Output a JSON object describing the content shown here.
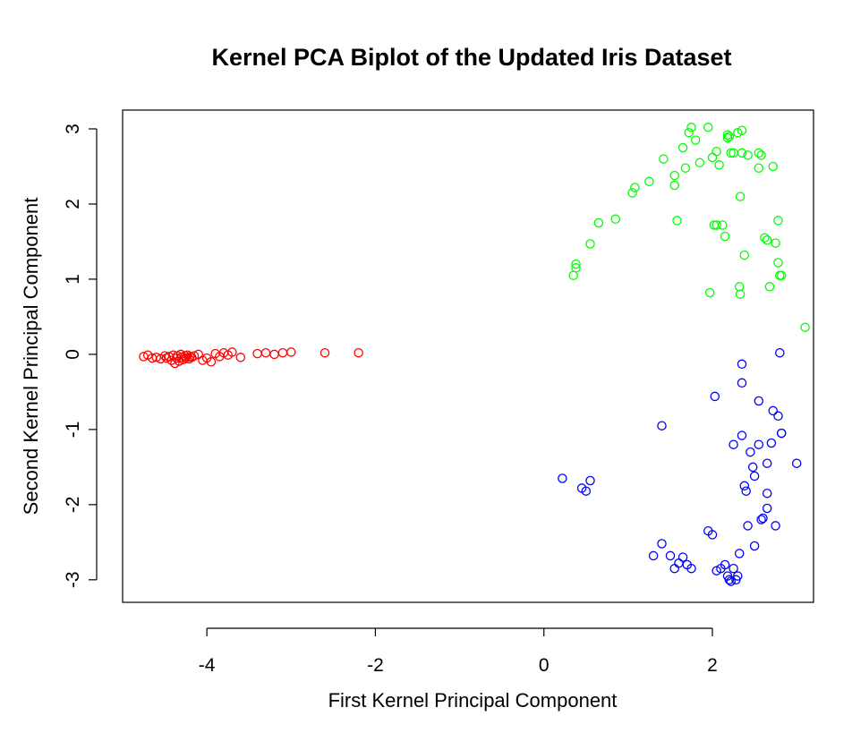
{
  "chart_data": {
    "type": "scatter",
    "title": "Kernel PCA Biplot of the Updated Iris Dataset",
    "xlabel": "First Kernel Principal Component",
    "ylabel": "Second Kernel Principal Component",
    "xlim": [
      -5.0,
      3.2
    ],
    "ylim": [
      -3.3,
      3.25
    ],
    "x_ticks": [
      -4,
      -2,
      0,
      2
    ],
    "y_ticks": [
      -3,
      -2,
      -1,
      0,
      1,
      2,
      3
    ],
    "x_tick_labels": [
      "-4",
      "-2",
      "0",
      "2"
    ],
    "y_tick_labels": [
      "-3",
      "-2",
      "-1",
      "0",
      "1",
      "2",
      "3"
    ],
    "grid": false,
    "legend": "none",
    "marker": "open-circle",
    "series": [
      {
        "color": "#ff0000",
        "x": [
          -4.75,
          -4.7,
          -4.65,
          -4.6,
          -4.55,
          -4.5,
          -4.48,
          -4.45,
          -4.42,
          -4.4,
          -4.38,
          -4.36,
          -4.35,
          -4.33,
          -4.31,
          -4.3,
          -4.28,
          -4.26,
          -4.25,
          -4.23,
          -4.21,
          -4.2,
          -4.18,
          -4.15,
          -4.1,
          -4.05,
          -4.0,
          -3.95,
          -3.9,
          -3.85,
          -3.8,
          -3.75,
          -3.7,
          -3.6,
          -3.4,
          -3.3,
          -3.2,
          -3.1,
          -3.0,
          -2.6,
          -2.2
        ],
        "y": [
          -0.03,
          -0.01,
          -0.05,
          -0.04,
          -0.06,
          -0.02,
          -0.05,
          -0.03,
          -0.08,
          -0.01,
          -0.12,
          -0.05,
          -0.02,
          -0.09,
          0.0,
          -0.04,
          -0.07,
          -0.02,
          -0.05,
          -0.01,
          -0.06,
          -0.03,
          -0.04,
          -0.02,
          0.0,
          -0.08,
          -0.05,
          -0.1,
          0.01,
          -0.03,
          0.02,
          -0.01,
          0.03,
          -0.04,
          0.01,
          0.02,
          0.0,
          0.02,
          0.03,
          0.02,
          0.02
        ]
      },
      {
        "color": "#00ff00",
        "x": [
          0.35,
          0.38,
          0.38,
          0.55,
          0.65,
          0.85,
          1.05,
          1.08,
          1.25,
          1.42,
          1.55,
          1.55,
          1.58,
          1.65,
          1.68,
          1.72,
          1.75,
          1.8,
          1.85,
          1.95,
          1.97,
          2.0,
          2.02,
          2.05,
          2.05,
          2.08,
          2.12,
          2.15,
          2.18,
          2.18,
          2.2,
          2.22,
          2.25,
          2.3,
          2.32,
          2.33,
          2.33,
          2.35,
          2.35,
          2.38,
          2.42,
          2.55,
          2.55,
          2.58,
          2.62,
          2.65,
          2.68,
          2.72,
          2.75,
          2.78,
          2.78,
          2.8,
          2.82,
          3.1
        ],
        "y": [
          1.05,
          1.15,
          1.2,
          1.47,
          1.75,
          1.8,
          2.15,
          2.22,
          2.3,
          2.6,
          2.25,
          2.38,
          1.78,
          2.75,
          2.48,
          2.95,
          3.02,
          2.85,
          2.55,
          3.02,
          0.82,
          2.62,
          1.72,
          1.72,
          2.7,
          2.52,
          1.72,
          1.57,
          2.88,
          2.92,
          2.9,
          2.68,
          2.68,
          2.95,
          0.9,
          2.1,
          0.8,
          2.98,
          2.68,
          1.32,
          2.65,
          2.68,
          2.48,
          2.65,
          1.55,
          1.52,
          0.9,
          2.5,
          1.48,
          1.78,
          1.22,
          1.05,
          1.05,
          0.36
        ]
      },
      {
        "color": "#0000ff",
        "x": [
          0.22,
          0.45,
          0.5,
          0.55,
          1.3,
          1.4,
          1.5,
          1.55,
          1.6,
          1.65,
          1.7,
          1.75,
          1.95,
          2.0,
          2.05,
          2.1,
          2.15,
          2.18,
          2.2,
          2.22,
          2.25,
          2.25,
          2.28,
          2.3,
          2.32,
          2.35,
          2.35,
          2.35,
          2.38,
          2.4,
          2.42,
          2.45,
          2.48,
          2.5,
          2.5,
          2.55,
          2.55,
          2.58,
          2.6,
          2.65,
          2.65,
          2.65,
          2.7,
          2.72,
          2.75,
          2.78,
          2.8,
          2.82,
          2.82,
          3.0,
          2.03,
          1.4
        ],
        "y": [
          -1.65,
          -1.78,
          -1.82,
          -1.68,
          -2.68,
          -2.52,
          -2.68,
          -2.85,
          -2.78,
          -2.7,
          -2.8,
          -2.85,
          -2.35,
          -2.4,
          -2.88,
          -2.85,
          -2.8,
          -2.95,
          -3.0,
          -3.02,
          -2.85,
          -1.2,
          -3.0,
          -2.95,
          -2.65,
          -0.38,
          -1.08,
          -0.13,
          -1.75,
          -1.82,
          -2.28,
          -1.3,
          -1.5,
          -1.62,
          -2.55,
          -0.62,
          -1.2,
          -2.2,
          -2.18,
          -1.45,
          -1.85,
          -2.05,
          -1.18,
          -0.75,
          -2.28,
          -0.82,
          0.02,
          -1.05,
          -1.05,
          -1.45,
          -0.56,
          -0.95
        ]
      }
    ]
  }
}
